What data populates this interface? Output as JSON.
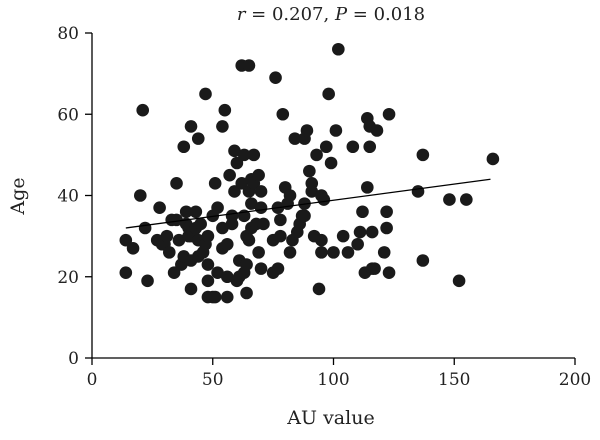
{
  "chart_data": {
    "type": "scatter",
    "title": "r = 0.207, P = 0.018",
    "title_parts": {
      "r_symbol": "r",
      "r_value": " = 0.207, ",
      "p_symbol": "P",
      "p_value": " = 0.018"
    },
    "xlabel": "AU value",
    "ylabel": "Age",
    "xlim": [
      0,
      200
    ],
    "ylim": [
      0,
      80
    ],
    "xticks": [
      0,
      50,
      100,
      150,
      200
    ],
    "yticks": [
      0,
      20,
      40,
      60,
      80
    ],
    "grid": false,
    "legend": "none",
    "marker_color": "#1a1a1a",
    "trendline": {
      "x": [
        14,
        165
      ],
      "y": [
        32,
        44
      ]
    },
    "points": [
      [
        14,
        21
      ],
      [
        14,
        29
      ],
      [
        17,
        27
      ],
      [
        20,
        40
      ],
      [
        21,
        61
      ],
      [
        22,
        32
      ],
      [
        23,
        19
      ],
      [
        27,
        29
      ],
      [
        28,
        37
      ],
      [
        29,
        28
      ],
      [
        30,
        28
      ],
      [
        31,
        30
      ],
      [
        32,
        26
      ],
      [
        33,
        34
      ],
      [
        34,
        21
      ],
      [
        35,
        43
      ],
      [
        35,
        34
      ],
      [
        36,
        29
      ],
      [
        37,
        23
      ],
      [
        38,
        52
      ],
      [
        38,
        25
      ],
      [
        39,
        33
      ],
      [
        39,
        36
      ],
      [
        40,
        30
      ],
      [
        40,
        32
      ],
      [
        41,
        30
      ],
      [
        41,
        24
      ],
      [
        41,
        17
      ],
      [
        41,
        57
      ],
      [
        42,
        31
      ],
      [
        43,
        32
      ],
      [
        43,
        36
      ],
      [
        44,
        54
      ],
      [
        44,
        29
      ],
      [
        44,
        25
      ],
      [
        45,
        33
      ],
      [
        46,
        26
      ],
      [
        47,
        65
      ],
      [
        47,
        28
      ],
      [
        48,
        19
      ],
      [
        48,
        15
      ],
      [
        48,
        30
      ],
      [
        48,
        23
      ],
      [
        50,
        35
      ],
      [
        50,
        15
      ],
      [
        51,
        43
      ],
      [
        51,
        15
      ],
      [
        52,
        21
      ],
      [
        52,
        37
      ],
      [
        54,
        27
      ],
      [
        54,
        32
      ],
      [
        54,
        57
      ],
      [
        55,
        61
      ],
      [
        56,
        28
      ],
      [
        56,
        20
      ],
      [
        56,
        15
      ],
      [
        57,
        45
      ],
      [
        58,
        33
      ],
      [
        58,
        35
      ],
      [
        59,
        51
      ],
      [
        59,
        41
      ],
      [
        60,
        48
      ],
      [
        60,
        19
      ],
      [
        61,
        20
      ],
      [
        61,
        24
      ],
      [
        62,
        72
      ],
      [
        62,
        43
      ],
      [
        63,
        50
      ],
      [
        63,
        35
      ],
      [
        63,
        21
      ],
      [
        64,
        30
      ],
      [
        64,
        23
      ],
      [
        64,
        16
      ],
      [
        65,
        72
      ],
      [
        65,
        41
      ],
      [
        65,
        29
      ],
      [
        66,
        44
      ],
      [
        66,
        38
      ],
      [
        66,
        32
      ],
      [
        67,
        43
      ],
      [
        67,
        50
      ],
      [
        68,
        33
      ],
      [
        69,
        45
      ],
      [
        69,
        26
      ],
      [
        70,
        22
      ],
      [
        70,
        41
      ],
      [
        70,
        37
      ],
      [
        71,
        33
      ],
      [
        75,
        21
      ],
      [
        75,
        29
      ],
      [
        76,
        69
      ],
      [
        77,
        37
      ],
      [
        77,
        22
      ],
      [
        78,
        34
      ],
      [
        78,
        30
      ],
      [
        79,
        60
      ],
      [
        80,
        42
      ],
      [
        81,
        38
      ],
      [
        82,
        26
      ],
      [
        82,
        40
      ],
      [
        83,
        29
      ],
      [
        84,
        54
      ],
      [
        85,
        31
      ],
      [
        86,
        33
      ],
      [
        87,
        35
      ],
      [
        88,
        35
      ],
      [
        88,
        38
      ],
      [
        88,
        54
      ],
      [
        89,
        56
      ],
      [
        90,
        46
      ],
      [
        91,
        43
      ],
      [
        91,
        41
      ],
      [
        92,
        30
      ],
      [
        93,
        50
      ],
      [
        94,
        17
      ],
      [
        95,
        40
      ],
      [
        95,
        29
      ],
      [
        95,
        26
      ],
      [
        96,
        39
      ],
      [
        97,
        52
      ],
      [
        98,
        65
      ],
      [
        99,
        48
      ],
      [
        100,
        26
      ],
      [
        101,
        56
      ],
      [
        102,
        76
      ],
      [
        104,
        30
      ],
      [
        106,
        26
      ],
      [
        108,
        52
      ],
      [
        110,
        28
      ],
      [
        111,
        31
      ],
      [
        112,
        36
      ],
      [
        113,
        21
      ],
      [
        114,
        59
      ],
      [
        114,
        42
      ],
      [
        115,
        57
      ],
      [
        115,
        52
      ],
      [
        116,
        22
      ],
      [
        116,
        31
      ],
      [
        117,
        22
      ],
      [
        118,
        56
      ],
      [
        121,
        26
      ],
      [
        122,
        32
      ],
      [
        122,
        36
      ],
      [
        123,
        21
      ],
      [
        123,
        60
      ],
      [
        135,
        41
      ],
      [
        137,
        50
      ],
      [
        137,
        24
      ],
      [
        148,
        39
      ],
      [
        152,
        19
      ],
      [
        155,
        39
      ],
      [
        166,
        49
      ]
    ]
  }
}
